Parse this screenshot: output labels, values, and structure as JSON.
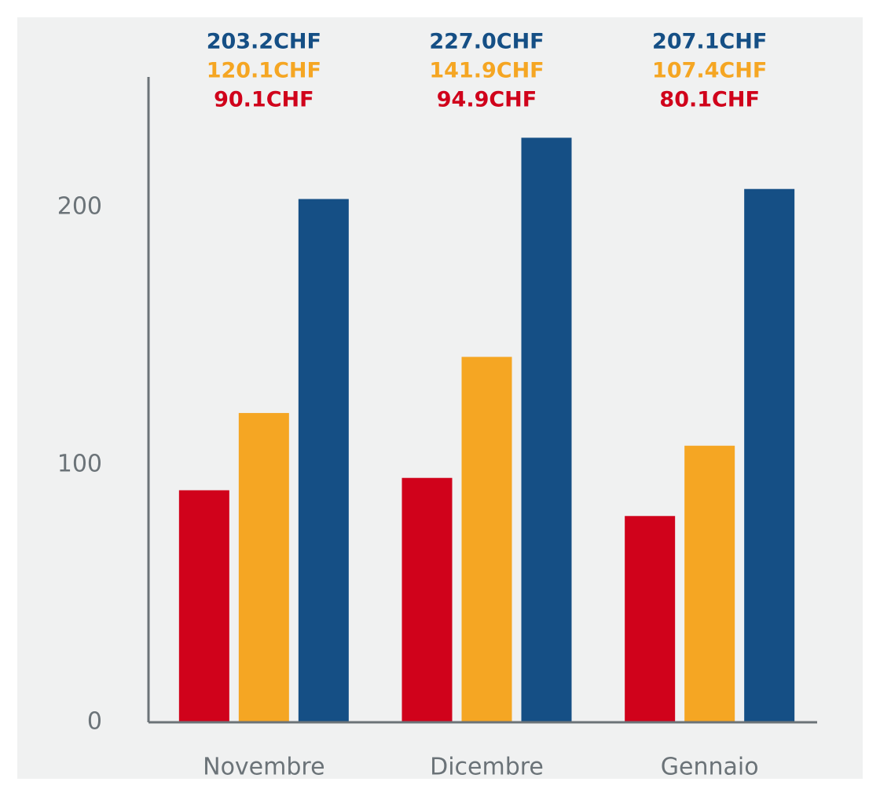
{
  "chart_data": {
    "type": "bar",
    "categories": [
      "Novembre",
      "Dicembre",
      "Gennaio"
    ],
    "series": [
      {
        "color": "#d0021b",
        "values": [
          90.1,
          94.9,
          80.1
        ],
        "value_labels": [
          "90.1CHF",
          "94.9CHF",
          "80.1CHF"
        ]
      },
      {
        "color": "#f5a623",
        "values": [
          120.1,
          141.9,
          107.4
        ],
        "value_labels": [
          "120.1CHF",
          "141.9CHF",
          "107.4CHF"
        ]
      },
      {
        "color": "#154f85",
        "values": [
          203.2,
          227.0,
          207.1
        ],
        "value_labels": [
          "203.2CHF",
          "227.0CHF",
          "207.1CHF"
        ]
      }
    ],
    "ylim": [
      0,
      250
    ],
    "yticks": [
      0,
      100,
      200
    ],
    "grid": false
  }
}
